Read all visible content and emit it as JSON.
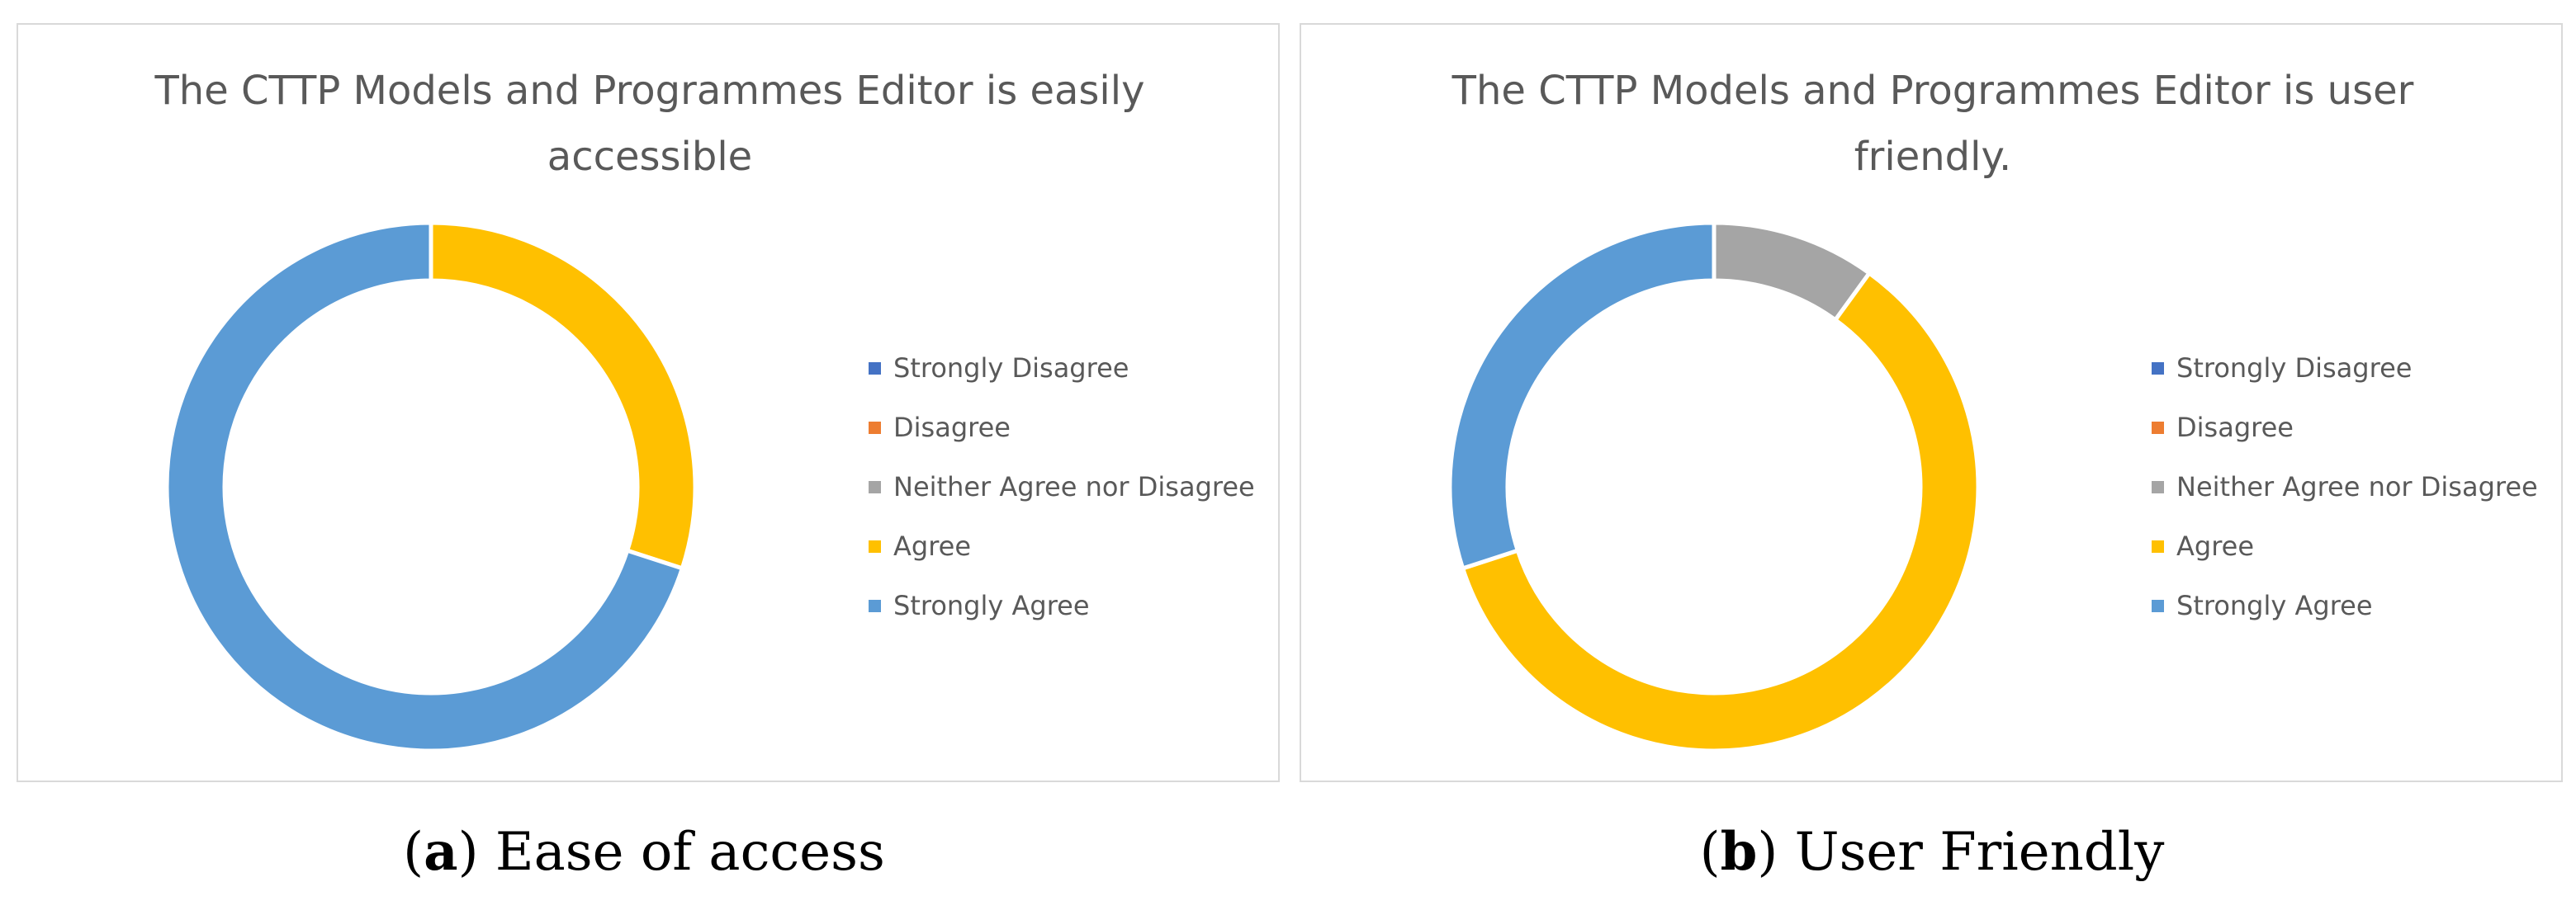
{
  "chart_data": [
    {
      "type": "pie",
      "title": "The CTTP Models and Programmes Editor is easily accessible",
      "categories": [
        "Strongly Disagree",
        "Disagree",
        "Neither Agree nor Disagree",
        "Agree",
        "Strongly Agree"
      ],
      "values": [
        0,
        0,
        0,
        30,
        70
      ],
      "colors": [
        "#4472c4",
        "#ed7d31",
        "#a5a5a5",
        "#ffc000",
        "#5b9bd5"
      ],
      "legend": "right",
      "style": "donut"
    },
    {
      "type": "pie",
      "title": "The CTTP Models and Programmes Editor is user friendly.",
      "categories": [
        "Strongly Disagree",
        "Disagree",
        "Neither Agree nor Disagree",
        "Agree",
        "Strongly Agree"
      ],
      "values": [
        0,
        0,
        10,
        60,
        30
      ],
      "colors": [
        "#4472c4",
        "#ed7d31",
        "#a5a5a5",
        "#ffc000",
        "#5b9bd5"
      ],
      "legend": "right",
      "style": "donut"
    }
  ],
  "captions": [
    {
      "letter": "a",
      "text": "Ease of access"
    },
    {
      "letter": "b",
      "text": "User Friendly"
    }
  ]
}
